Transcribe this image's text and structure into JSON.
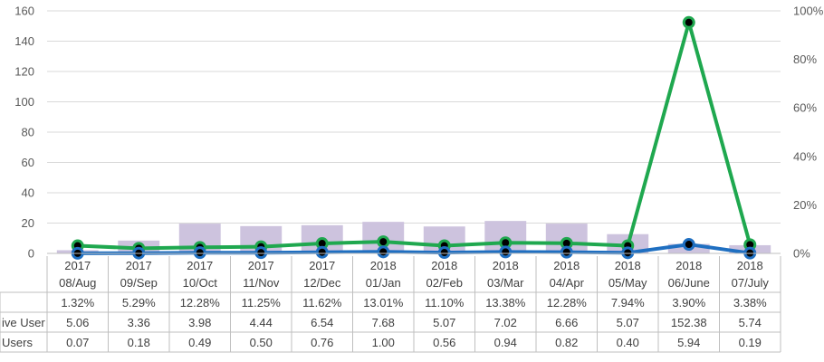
{
  "chart_data": {
    "type": "bar",
    "categories": [
      [
        "2017",
        "08/Aug"
      ],
      [
        "2017",
        "09/Sep"
      ],
      [
        "2017",
        "10/Oct"
      ],
      [
        "2017",
        "11/Nov"
      ],
      [
        "2017",
        "12/Dec"
      ],
      [
        "2018",
        "01/Jan"
      ],
      [
        "2018",
        "02/Feb"
      ],
      [
        "2018",
        "03/Mar"
      ],
      [
        "2018",
        "04/Apr"
      ],
      [
        "2018",
        "05/May"
      ],
      [
        "2018",
        "06/June"
      ],
      [
        "2018",
        "07/July"
      ]
    ],
    "y_left": {
      "min": 0,
      "max": 160,
      "ticks": [
        "0",
        "20",
        "40",
        "60",
        "80",
        "100",
        "120",
        "140",
        "160"
      ]
    },
    "y_right": {
      "min": 0,
      "max": 1,
      "ticks": [
        "0%",
        "20%",
        "40%",
        "60%",
        "80%",
        "100%"
      ]
    },
    "series": [
      {
        "kind": "bar",
        "axis": "right",
        "color": "#cdc3de",
        "values": [
          0.0132,
          0.0529,
          0.1228,
          0.1125,
          0.1162,
          0.1301,
          0.111,
          0.1338,
          0.1228,
          0.0794,
          0.039,
          0.0338
        ],
        "labels": [
          "1.32%",
          "5.29%",
          "12.28%",
          "11.25%",
          "11.62%",
          "13.01%",
          "11.10%",
          "13.38%",
          "12.28%",
          "7.94%",
          "3.90%",
          "3.38%"
        ]
      },
      {
        "kind": "line",
        "axis": "left",
        "color": "#1fa84f",
        "row_label": "ive User",
        "values": [
          5.06,
          3.36,
          3.98,
          4.44,
          6.54,
          7.68,
          5.07,
          7.02,
          6.66,
          5.07,
          152.38,
          5.74
        ],
        "labels": [
          "5.06",
          "3.36",
          "3.98",
          "4.44",
          "6.54",
          "7.68",
          "5.07",
          "7.02",
          "6.66",
          "5.07",
          "152.38",
          "5.74"
        ]
      },
      {
        "kind": "line",
        "axis": "left",
        "color": "#1f6fc1",
        "row_label": "Users",
        "values": [
          0.07,
          0.18,
          0.49,
          0.5,
          0.76,
          1.0,
          0.56,
          0.94,
          0.82,
          0.4,
          5.94,
          0.19
        ],
        "labels": [
          "0.07",
          "0.18",
          "0.49",
          "0.50",
          "0.76",
          "1.00",
          "0.56",
          "0.94",
          "0.82",
          "0.40",
          "5.94",
          "0.19"
        ]
      }
    ],
    "gridlines": true,
    "legend": "data-table"
  }
}
